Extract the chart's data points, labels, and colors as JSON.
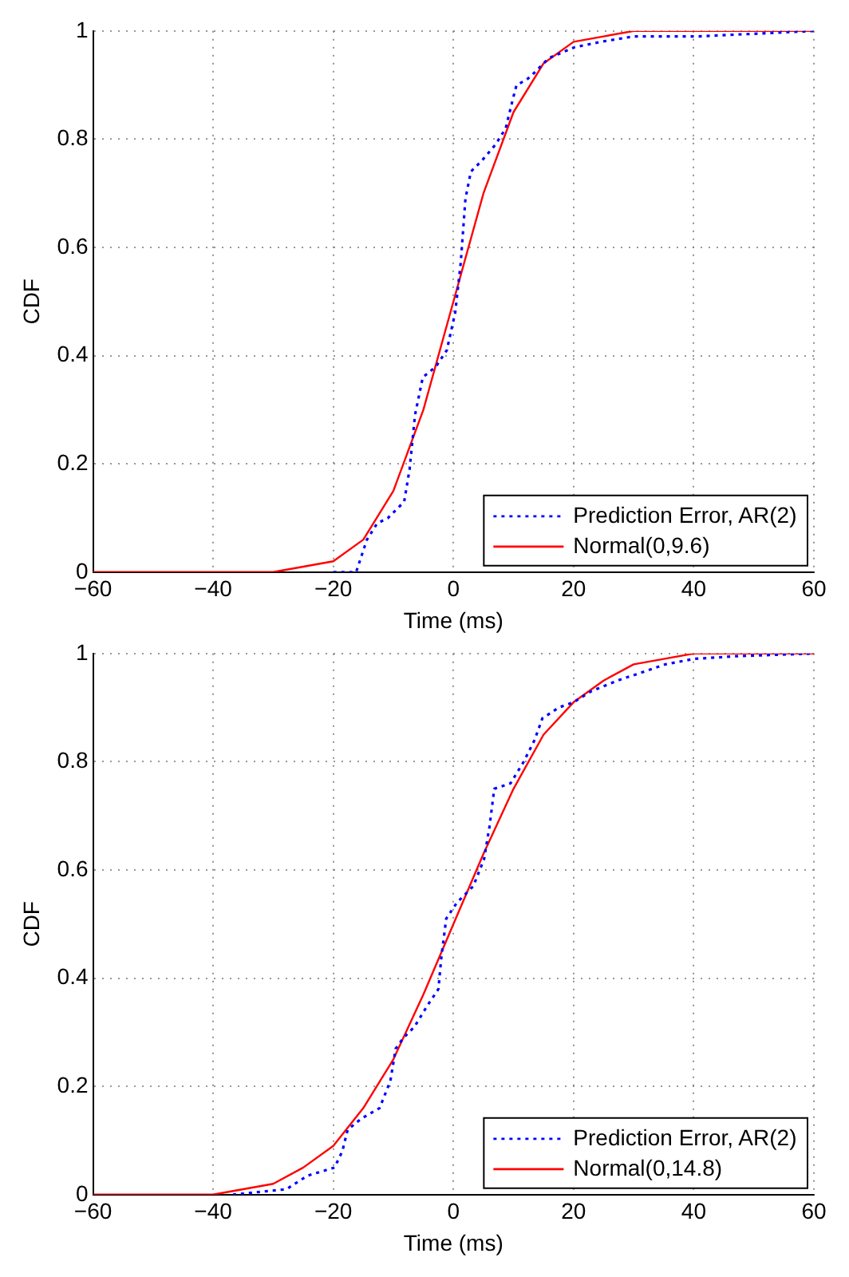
{
  "chart_data": [
    {
      "type": "line",
      "xlabel": "Time (ms)",
      "ylabel": "CDF",
      "xlim": [
        -60,
        60
      ],
      "ylim": [
        0,
        1
      ],
      "xticks": [
        -60,
        -40,
        -20,
        0,
        20,
        40,
        60
      ],
      "yticks": [
        0,
        0.2,
        0.4,
        0.6,
        0.8,
        1
      ],
      "grid": true,
      "legend": "bottom right",
      "marker": "none",
      "series": [
        {
          "name": "Prediction Error, AR(2)",
          "color": "#0000ff",
          "line_style": "dotted",
          "x": [
            -20,
            -16.2,
            -14.4,
            -12.7,
            -10.9,
            -8.2,
            -7.3,
            -6.4,
            -5.1,
            -2.9,
            -1.1,
            0.3,
            1.2,
            2,
            2.9,
            4.7,
            7,
            8.7,
            9.8,
            10.5,
            12.2,
            13.2,
            15.9,
            20.2,
            24.6,
            30,
            40.7,
            60
          ],
          "values": [
            0,
            0,
            0.06,
            0.09,
            0.1,
            0.13,
            0.19,
            0.29,
            0.36,
            0.38,
            0.41,
            0.48,
            0.57,
            0.69,
            0.74,
            0.76,
            0.79,
            0.82,
            0.87,
            0.9,
            0.91,
            0.92,
            0.95,
            0.97,
            0.98,
            0.99,
            0.99,
            1
          ]
        },
        {
          "name": "Normal(0,9.6)",
          "color": "#ff0000",
          "line_style": "solid",
          "x": [
            -60,
            -30,
            -25,
            -20,
            -15,
            -10,
            -5,
            0,
            5,
            10,
            15,
            20,
            25,
            30,
            60
          ],
          "values": [
            0,
            0,
            0.01,
            0.02,
            0.06,
            0.15,
            0.3,
            0.5,
            0.7,
            0.85,
            0.94,
            0.98,
            0.99,
            1,
            1
          ]
        }
      ]
    },
    {
      "type": "line",
      "xlabel": "Time (ms)",
      "ylabel": "CDF",
      "xlim": [
        -60,
        60
      ],
      "ylim": [
        0,
        1
      ],
      "xticks": [
        -60,
        -40,
        -20,
        0,
        20,
        40,
        60
      ],
      "yticks": [
        0,
        0.2,
        0.4,
        0.6,
        0.8,
        1
      ],
      "grid": true,
      "legend": "bottom right",
      "marker": "none",
      "series": [
        {
          "name": "Prediction Error, AR(2)",
          "color": "#0000ff",
          "line_style": "dotted",
          "x": [
            -36.7,
            -27.8,
            -24.3,
            -19.8,
            -18.5,
            -17.6,
            -15.4,
            -12.3,
            -10.5,
            -9.6,
            -8.3,
            -6.5,
            -4.3,
            -2.5,
            -2,
            -1.2,
            0.6,
            3.3,
            5.1,
            6,
            6.8,
            9.5,
            11.7,
            13.5,
            14.8,
            17.5,
            20,
            22.9,
            27.3,
            30,
            35.3,
            40,
            47,
            60
          ],
          "values": [
            0,
            0.01,
            0.035,
            0.05,
            0.08,
            0.12,
            0.14,
            0.16,
            0.21,
            0.27,
            0.29,
            0.31,
            0.35,
            0.38,
            0.44,
            0.51,
            0.54,
            0.57,
            0.62,
            0.68,
            0.75,
            0.76,
            0.8,
            0.84,
            0.88,
            0.9,
            0.91,
            0.93,
            0.95,
            0.96,
            0.98,
            0.99,
            0.995,
            1
          ]
        },
        {
          "name": "Normal(0,14.8)",
          "color": "#ff0000",
          "line_style": "solid",
          "x": [
            -60,
            -45,
            -40,
            -35,
            -30,
            -25,
            -20,
            -15,
            -10,
            -5,
            0,
            5,
            10,
            15,
            20,
            25,
            30,
            35,
            40,
            45,
            60
          ],
          "values": [
            0,
            0,
            0,
            0.01,
            0.02,
            0.05,
            0.09,
            0.16,
            0.25,
            0.37,
            0.5,
            0.63,
            0.75,
            0.85,
            0.91,
            0.95,
            0.98,
            0.99,
            1,
            1,
            1
          ]
        }
      ]
    }
  ]
}
